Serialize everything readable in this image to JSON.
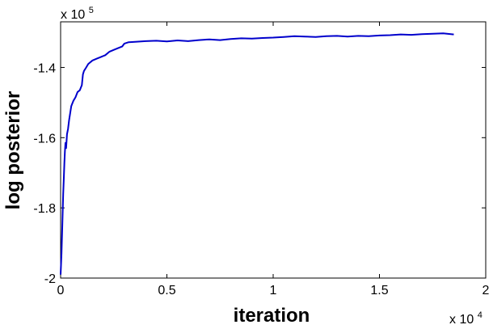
{
  "chart_data": {
    "type": "line",
    "title": "",
    "xlabel": "iteration",
    "ylabel": "log posterior",
    "x_multiplier": {
      "base": "x 10",
      "exponent": "4"
    },
    "y_multiplier": {
      "base": "x 10",
      "exponent": "5"
    },
    "xlim": [
      0,
      20000
    ],
    "ylim": [
      -200000,
      -127000
    ],
    "x_ticks": [
      {
        "value": 0,
        "label": "0"
      },
      {
        "value": 5000,
        "label": "0.5"
      },
      {
        "value": 10000,
        "label": "1"
      },
      {
        "value": 15000,
        "label": "1.5"
      },
      {
        "value": 20000,
        "label": "2"
      }
    ],
    "y_ticks": [
      {
        "value": -200000,
        "label": "-2"
      },
      {
        "value": -180000,
        "label": "-1.8"
      },
      {
        "value": -160000,
        "label": "-1.6"
      },
      {
        "value": -140000,
        "label": "-1.4"
      }
    ],
    "grid": false,
    "legend": "none",
    "series": [
      {
        "color": "#0000cc",
        "x": [
          0,
          40,
          80,
          120,
          150,
          180,
          200,
          230,
          260,
          300,
          350,
          400,
          500,
          600,
          700,
          800,
          900,
          1000,
          1050,
          1100,
          1200,
          1300,
          1500,
          1700,
          1900,
          2100,
          2300,
          2500,
          2700,
          2900,
          3000,
          3200,
          3500,
          4000,
          4500,
          5000,
          5500,
          6000,
          6500,
          7000,
          7500,
          8000,
          8500,
          9000,
          9500,
          10000,
          10500,
          11000,
          11500,
          12000,
          12500,
          13000,
          13500,
          14000,
          14500,
          15000,
          15500,
          16000,
          16500,
          17000,
          17500,
          18000,
          18500
        ],
        "y": [
          -199000,
          -193000,
          -185000,
          -176000,
          -172000,
          -167000,
          -164000,
          -161500,
          -163000,
          -159000,
          -157500,
          -155000,
          -151000,
          -149500,
          -148500,
          -147000,
          -146500,
          -145000,
          -142000,
          -141000,
          -140000,
          -139000,
          -138000,
          -137500,
          -137000,
          -136500,
          -135500,
          -135000,
          -134500,
          -134000,
          -133200,
          -132800,
          -132700,
          -132500,
          -132400,
          -132600,
          -132300,
          -132500,
          -132200,
          -132000,
          -132200,
          -131900,
          -131700,
          -131800,
          -131600,
          -131500,
          -131300,
          -131100,
          -131200,
          -131300,
          -131100,
          -131000,
          -131200,
          -131000,
          -131100,
          -130900,
          -130800,
          -130600,
          -130700,
          -130500,
          -130400,
          -130300,
          -130600
        ]
      }
    ]
  }
}
